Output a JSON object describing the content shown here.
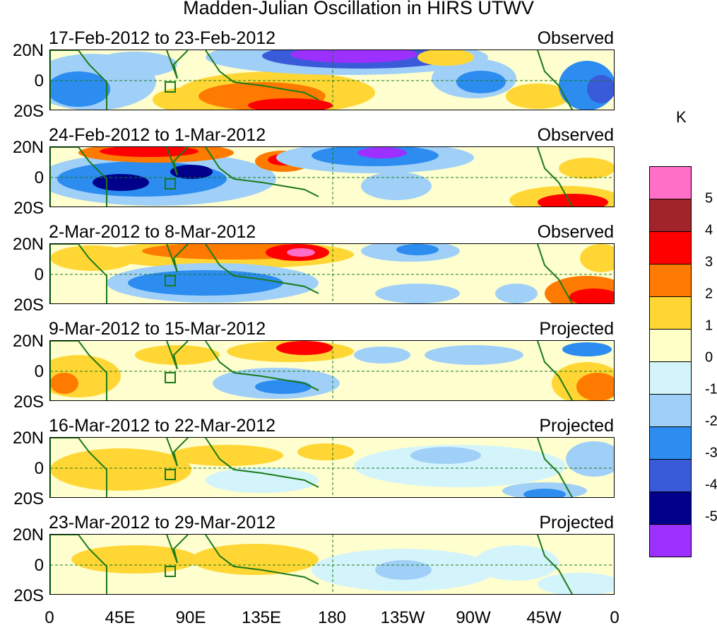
{
  "title": "Madden-Julian Oscillation in HIRS UTWV",
  "unit": "K",
  "lat_labels": [
    "20N",
    "0",
    "20S"
  ],
  "lon_labels": [
    "0",
    "45E",
    "90E",
    "135E",
    "180",
    "135W",
    "90W",
    "45W",
    "0"
  ],
  "panels": [
    {
      "label": "17-Feb-2012 to 23-Feb-2012",
      "status": "Observed"
    },
    {
      "label": "24-Feb-2012 to 1-Mar-2012",
      "status": "Observed"
    },
    {
      "label": "2-Mar-2012 to 8-Mar-2012",
      "status": "Observed"
    },
    {
      "label": "9-Mar-2012 to 15-Mar-2012",
      "status": "Projected"
    },
    {
      "label": "16-Mar-2012 to 22-Mar-2012",
      "status": "Projected"
    },
    {
      "label": "23-Mar-2012 to 29-Mar-2012",
      "status": "Projected"
    }
  ],
  "colorbar": {
    "labels": [
      "5",
      "4",
      "3",
      "2",
      "1",
      "0",
      "-1",
      "-2",
      "-3",
      "-4",
      "-5"
    ],
    "colors": [
      "#ff6ec7",
      "#a0242a",
      "#ff0000",
      "#ff7a00",
      "#ffd633",
      "#ffffc8",
      "#d4f4fb",
      "#a0d0f8",
      "#2c8cf0",
      "#3a5bd9",
      "#00008b",
      "#9b30ff"
    ]
  },
  "styles": {
    "land_outline": "#1a7a1a",
    "grid_line": "#1a7a1a",
    "background": "#fefecf"
  }
}
